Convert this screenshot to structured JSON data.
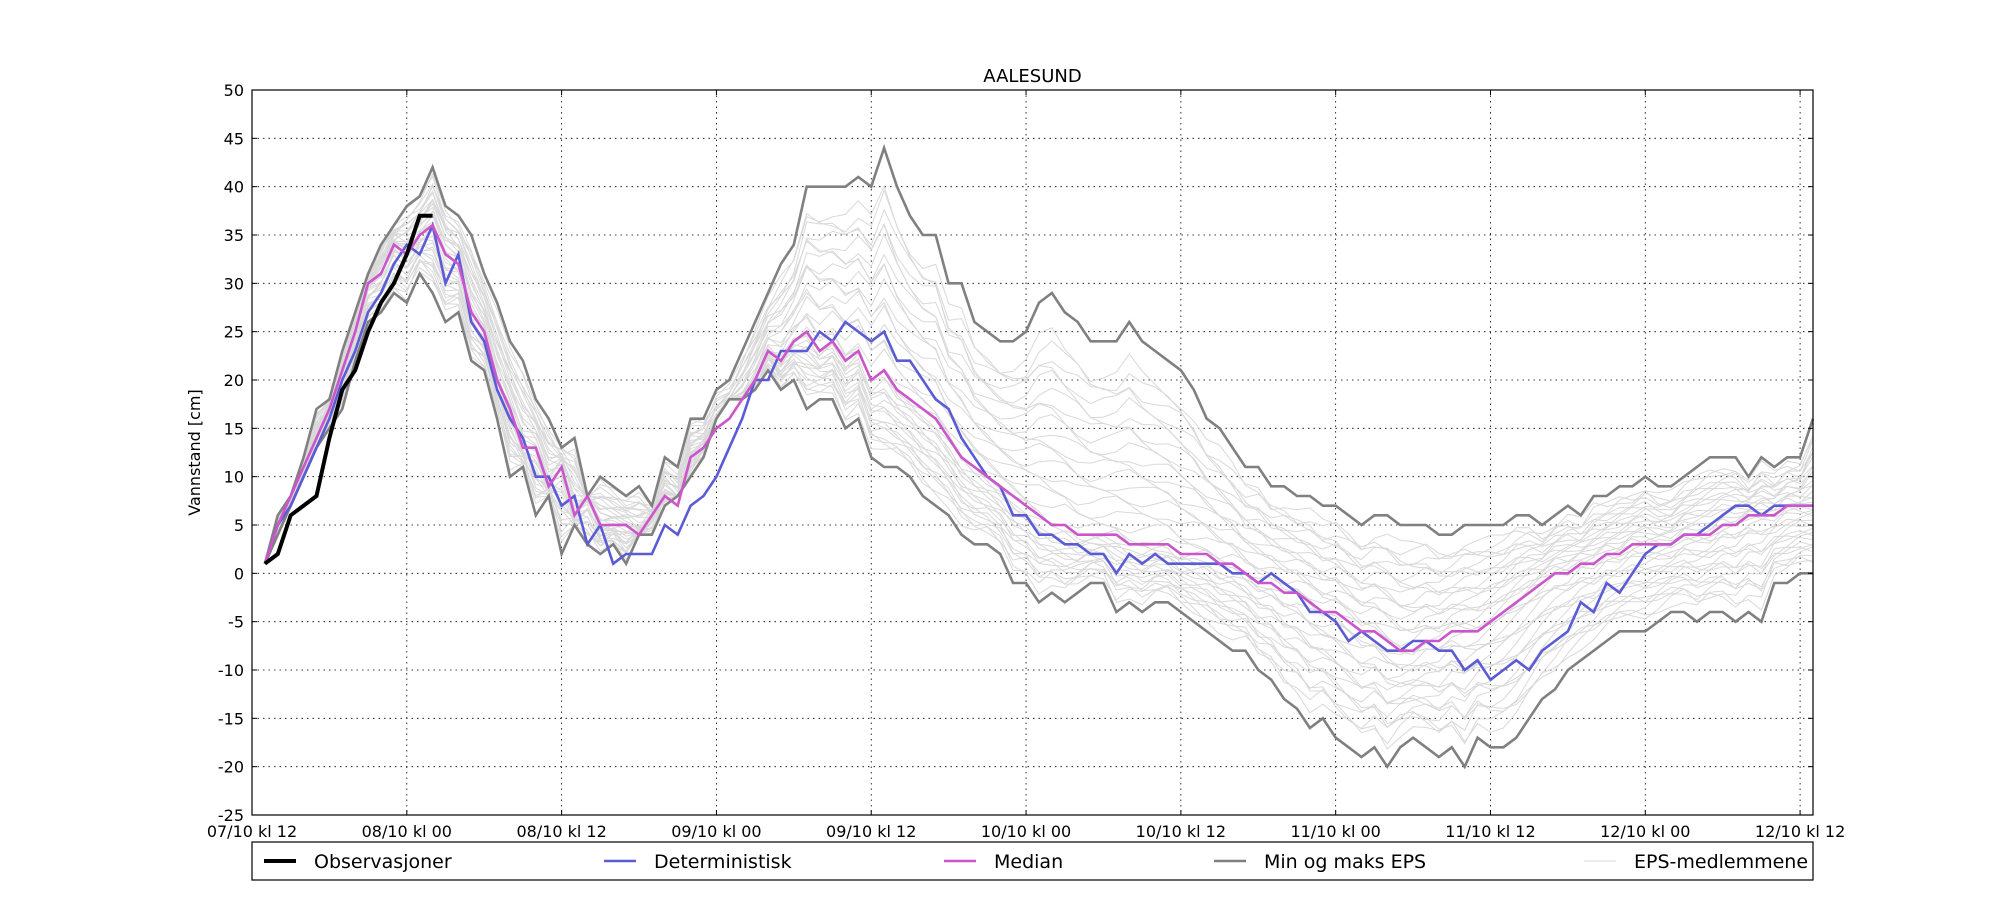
{
  "chart_data": {
    "type": "line",
    "title": "AALESUND",
    "xlabel": "",
    "ylabel": "Vannstand [cm]",
    "ylim": [
      -25,
      50
    ],
    "yticks": [
      -25,
      -20,
      -15,
      -10,
      -5,
      0,
      5,
      10,
      15,
      20,
      25,
      30,
      35,
      40,
      45,
      50
    ],
    "xlim_hours": [
      0,
      121
    ],
    "xticks": [
      {
        "hour": 0,
        "label": "07/10 kl 12"
      },
      {
        "hour": 12,
        "label": "08/10 kl 00"
      },
      {
        "hour": 24,
        "label": "08/10 kl 12"
      },
      {
        "hour": 36,
        "label": "09/10 kl 00"
      },
      {
        "hour": 48,
        "label": "09/10 kl 12"
      },
      {
        "hour": 60,
        "label": "10/10 kl 00"
      },
      {
        "hour": 72,
        "label": "10/10 kl 12"
      },
      {
        "hour": 84,
        "label": "11/10 kl 00"
      },
      {
        "hour": 96,
        "label": "11/10 kl 12"
      },
      {
        "hour": 108,
        "label": "12/10 kl 00"
      },
      {
        "hour": 120,
        "label": "12/10 kl 12"
      }
    ],
    "grid": true,
    "legend_position": "bottom",
    "series": [
      {
        "name": "Observasjoner",
        "color": "#000000",
        "x": [
          1,
          2,
          3,
          5,
          6,
          7,
          8,
          9,
          10,
          11,
          12,
          13,
          14
        ],
        "y": [
          1,
          2,
          6,
          8,
          14,
          19,
          21,
          25,
          28,
          30,
          33,
          37,
          37
        ]
      },
      {
        "name": "Deterministisk",
        "color": "#5b5bd6",
        "x": [
          1,
          2,
          3,
          5,
          6,
          7,
          8,
          9,
          10,
          11,
          12,
          13,
          14,
          15,
          16,
          17,
          18,
          19,
          20,
          21,
          22,
          23,
          24,
          25,
          26,
          27,
          28,
          29,
          30,
          31,
          32,
          33,
          34,
          35,
          36,
          37,
          38,
          39,
          40,
          41,
          42,
          43,
          44,
          45,
          46,
          47,
          48,
          49,
          50,
          51,
          52,
          53,
          54,
          55,
          56,
          57,
          58,
          59,
          60,
          61,
          62,
          63,
          64,
          65,
          66,
          67,
          68,
          69,
          70,
          71,
          72,
          73,
          74,
          75,
          76,
          77,
          78,
          79,
          80,
          81,
          82,
          83,
          84,
          85,
          86,
          87,
          88,
          89,
          90,
          91,
          92,
          93,
          94,
          95,
          96,
          97,
          98,
          99,
          100,
          101,
          102,
          103,
          104,
          105,
          106,
          107,
          108,
          109,
          110,
          111,
          112,
          113,
          114,
          115,
          116,
          117,
          118,
          119,
          120,
          121
        ],
        "y": [
          1,
          5,
          7,
          13,
          16,
          20,
          23,
          27,
          29,
          32,
          34,
          33,
          36,
          30,
          33,
          26,
          24,
          19,
          16,
          14,
          10,
          10,
          7,
          8,
          3,
          5,
          1,
          2,
          2,
          2,
          5,
          4,
          7,
          8,
          10,
          13,
          16,
          20,
          20,
          23,
          23,
          23,
          25,
          24,
          26,
          25,
          24,
          25,
          22,
          22,
          20,
          18,
          17,
          14,
          12,
          10,
          9,
          6,
          6,
          4,
          4,
          3,
          3,
          2,
          2,
          0,
          2,
          1,
          2,
          1,
          1,
          1,
          1,
          1,
          0,
          0,
          -1,
          0,
          -1,
          -2,
          -4,
          -4,
          -5,
          -7,
          -6,
          -7,
          -8,
          -8,
          -7,
          -7,
          -8,
          -8,
          -10,
          -9,
          -11,
          -10,
          -9,
          -10,
          -8,
          -7,
          -6,
          -3,
          -4,
          -1,
          -2,
          0,
          2,
          3,
          3,
          4,
          4,
          5,
          6,
          7,
          7,
          6,
          7,
          7,
          7,
          7
        ],
        "y_note": "index aligned to x"
      },
      {
        "name": "Median",
        "color": "#cc55cc",
        "x": [
          1,
          2,
          3,
          5,
          6,
          7,
          8,
          9,
          10,
          11,
          12,
          13,
          14,
          15,
          16,
          17,
          18,
          19,
          20,
          21,
          22,
          23,
          24,
          25,
          26,
          27,
          28,
          29,
          30,
          31,
          32,
          33,
          34,
          35,
          36,
          37,
          38,
          39,
          40,
          41,
          42,
          43,
          44,
          45,
          46,
          47,
          48,
          49,
          50,
          51,
          52,
          53,
          54,
          55,
          56,
          57,
          58,
          59,
          60,
          61,
          62,
          63,
          64,
          65,
          66,
          67,
          68,
          69,
          70,
          71,
          72,
          73,
          74,
          75,
          76,
          77,
          78,
          79,
          80,
          81,
          82,
          83,
          84,
          85,
          86,
          87,
          88,
          89,
          90,
          91,
          92,
          93,
          94,
          95,
          96,
          97,
          98,
          99,
          100,
          101,
          102,
          103,
          104,
          105,
          106,
          107,
          108,
          109,
          110,
          111,
          112,
          113,
          114,
          115,
          116,
          117,
          118,
          119,
          120,
          121
        ],
        "y": [
          1,
          5,
          8,
          14,
          17,
          21,
          25,
          30,
          31,
          34,
          33,
          35,
          36,
          33,
          32,
          27,
          25,
          20,
          17,
          13,
          13,
          9,
          11,
          6,
          8,
          5,
          5,
          5,
          4,
          6,
          8,
          7,
          12,
          13,
          15,
          16,
          18,
          20,
          23,
          22,
          24,
          25,
          23,
          24,
          22,
          23,
          20,
          21,
          19,
          18,
          17,
          16,
          14,
          12,
          11,
          10,
          9,
          8,
          7,
          6,
          5,
          5,
          4,
          4,
          4,
          4,
          3,
          3,
          3,
          3,
          2,
          2,
          2,
          1,
          1,
          0,
          -1,
          -1,
          -2,
          -2,
          -3,
          -4,
          -4,
          -5,
          -6,
          -6,
          -7,
          -8,
          -8,
          -7,
          -7,
          -6,
          -6,
          -6,
          -5,
          -4,
          -3,
          -2,
          -1,
          0,
          0,
          1,
          1,
          2,
          2,
          3,
          3,
          3,
          3,
          4,
          4,
          4,
          5,
          5,
          6,
          6,
          6,
          7,
          7,
          7
        ]
      },
      {
        "name": "Min og maks EPS",
        "color": "#808080",
        "min": {
          "x": [
            1,
            2,
            3,
            4,
            5,
            6,
            7,
            8,
            9,
            10,
            11,
            12,
            13,
            14,
            15,
            16,
            17,
            18,
            19,
            20,
            21,
            22,
            23,
            24,
            25,
            26,
            27,
            28,
            29,
            30,
            31,
            32,
            33,
            34,
            35,
            36,
            37,
            38,
            39,
            40,
            41,
            42,
            43,
            44,
            45,
            46,
            47,
            48,
            49,
            50,
            51,
            52,
            53,
            54,
            55,
            56,
            57,
            58,
            59,
            60,
            61,
            62,
            63,
            64,
            65,
            66,
            67,
            68,
            69,
            70,
            71,
            72,
            73,
            74,
            75,
            76,
            77,
            78,
            79,
            80,
            81,
            82,
            83,
            84,
            85,
            86,
            87,
            88,
            89,
            90,
            91,
            92,
            93,
            94,
            95,
            96,
            97,
            98,
            99,
            100,
            101,
            102,
            103,
            104,
            105,
            106,
            107,
            108,
            109,
            110,
            111,
            112,
            113,
            114,
            115,
            116,
            117,
            118,
            119,
            120,
            121
          ],
          "y": [
            1,
            4,
            7,
            10,
            13,
            15,
            17,
            22,
            26,
            27,
            29,
            28,
            31,
            29,
            26,
            27,
            22,
            21,
            16,
            10,
            11,
            6,
            8,
            2,
            5,
            3,
            2,
            3,
            1,
            4,
            4,
            7,
            8,
            10,
            12,
            16,
            18,
            18,
            19,
            21,
            19,
            20,
            17,
            18,
            18,
            15,
            16,
            12,
            11,
            11,
            10,
            8,
            7,
            6,
            4,
            3,
            3,
            2,
            -1,
            -1,
            -3,
            -2,
            -3,
            -2,
            -1,
            -1,
            -4,
            -3,
            -4,
            -3,
            -3,
            -4,
            -5,
            -6,
            -7,
            -8,
            -8,
            -10,
            -11,
            -13,
            -14,
            -16,
            -15,
            -17,
            -18,
            -19,
            -18,
            -20,
            -18,
            -17,
            -18,
            -19,
            -18,
            -20,
            -17,
            -18,
            -18,
            -17,
            -15,
            -13,
            -12,
            -10,
            -9,
            -8,
            -7,
            -6,
            -6,
            -6,
            -5,
            -4,
            -4,
            -5,
            -4,
            -4,
            -5,
            -4,
            -5,
            -1,
            -1,
            0,
            0
          ]
        },
        "max": {
          "x": [
            1,
            2,
            3,
            4,
            5,
            6,
            7,
            8,
            9,
            10,
            11,
            12,
            13,
            14,
            15,
            16,
            17,
            18,
            19,
            20,
            21,
            22,
            23,
            24,
            25,
            26,
            27,
            28,
            29,
            30,
            31,
            32,
            33,
            34,
            35,
            36,
            37,
            38,
            39,
            40,
            41,
            42,
            43,
            44,
            45,
            46,
            47,
            48,
            49,
            50,
            51,
            52,
            53,
            54,
            55,
            56,
            57,
            58,
            59,
            60,
            61,
            62,
            63,
            64,
            65,
            66,
            67,
            68,
            69,
            70,
            71,
            72,
            73,
            74,
            75,
            76,
            77,
            78,
            79,
            80,
            81,
            82,
            83,
            84,
            85,
            86,
            87,
            88,
            89,
            90,
            91,
            92,
            93,
            94,
            95,
            96,
            97,
            98,
            99,
            100,
            101,
            102,
            103,
            104,
            105,
            106,
            107,
            108,
            109,
            110,
            111,
            112,
            113,
            114,
            115,
            116,
            117,
            118,
            119,
            120,
            121
          ],
          "y": [
            1,
            6,
            8,
            12,
            17,
            18,
            23,
            27,
            31,
            34,
            36,
            38,
            39,
            42,
            38,
            37,
            35,
            31,
            28,
            24,
            22,
            18,
            16,
            13,
            14,
            8,
            10,
            9,
            8,
            9,
            7,
            12,
            11,
            16,
            16,
            19,
            20,
            23,
            26,
            29,
            32,
            34,
            40,
            40,
            40,
            40,
            41,
            40,
            44,
            40,
            37,
            35,
            35,
            30,
            30,
            26,
            25,
            24,
            24,
            25,
            28,
            29,
            27,
            26,
            24,
            24,
            24,
            26,
            24,
            23,
            22,
            21,
            19,
            16,
            15,
            13,
            11,
            11,
            9,
            9,
            8,
            8,
            7,
            7,
            6,
            5,
            6,
            6,
            5,
            5,
            5,
            4,
            4,
            5,
            5,
            5,
            5,
            6,
            6,
            5,
            6,
            7,
            6,
            8,
            8,
            9,
            9,
            10,
            9,
            9,
            10,
            11,
            12,
            12,
            12,
            10,
            12,
            11,
            12,
            12,
            16
          ]
        }
      },
      {
        "name": "EPS-medlemmene",
        "color": "#d9d9d9"
      }
    ]
  }
}
